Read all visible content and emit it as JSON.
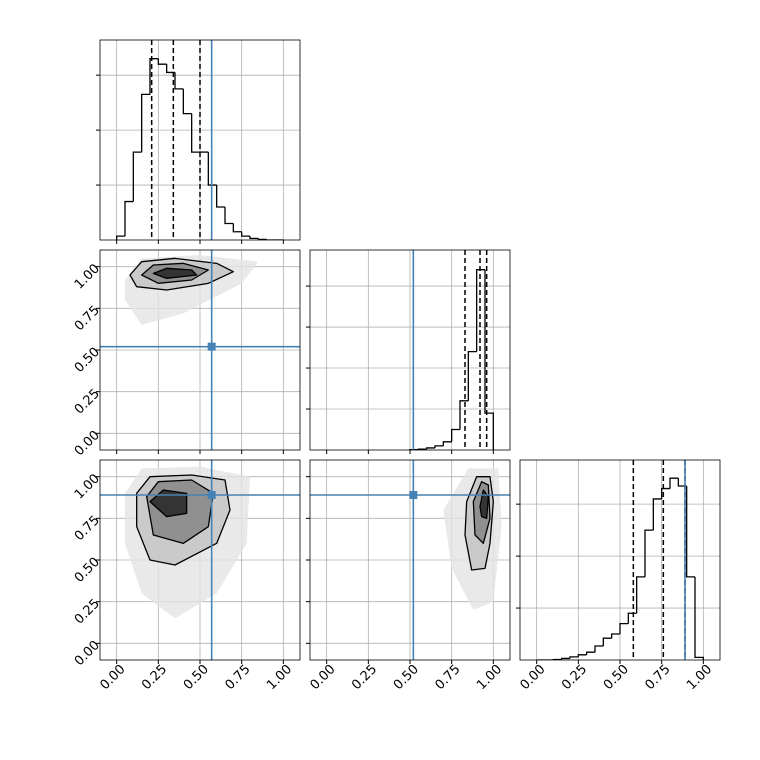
{
  "xlim": [
    -0.1,
    1.1
  ],
  "ticks": [
    {
      "value": 0,
      "label": "0.00"
    },
    {
      "value": 0.25,
      "label": "0.25"
    },
    {
      "value": 0.5,
      "label": "0.50"
    },
    {
      "value": 0.75,
      "label": "0.75"
    },
    {
      "value": 1,
      "label": "1.00"
    }
  ],
  "truth_color": "#4682b4",
  "grid_color": "#b0b0b0",
  "contour_fills": [
    "#e4e4e4",
    "#c6c6c6",
    "#8a8a8a",
    "#2a2a2a"
  ],
  "chart_data": [
    {
      "type": "histogram",
      "bins": [
        0,
        0.05,
        0.1,
        0.15,
        0.2,
        0.25,
        0.3,
        0.35,
        0.4,
        0.45,
        0.5,
        0.55,
        0.6,
        0.65,
        0.7,
        0.75,
        0.8,
        0.85,
        0.9,
        0.95,
        1.0
      ],
      "values": [
        0.07,
        0.7,
        1.6,
        2.65,
        3.3,
        3.2,
        3.05,
        2.75,
        2.3,
        1.6,
        1.6,
        1.0,
        0.6,
        0.3,
        0.15,
        0.07,
        0.03,
        0.01,
        0,
        0
      ],
      "ylim": [
        0,
        3.64
      ],
      "yticks": [
        1,
        2,
        3
      ],
      "quantiles": [
        0.21,
        0.34,
        0.5
      ],
      "truth": 0.57
    },
    {
      "type": "contour2d",
      "contours": [
        {
          "x": [
            0.05,
            0.15,
            0.5,
            0.85,
            0.75,
            0.4,
            0.15,
            0.05
          ],
          "y": [
            0.92,
            1.05,
            1.07,
            1.03,
            0.9,
            0.72,
            0.65,
            0.8
          ]
        },
        {
          "x": [
            0.08,
            0.15,
            0.35,
            0.6,
            0.7,
            0.55,
            0.3,
            0.12
          ],
          "y": [
            0.95,
            1.03,
            1.05,
            1.02,
            0.97,
            0.9,
            0.86,
            0.88
          ]
        },
        {
          "x": [
            0.15,
            0.22,
            0.4,
            0.55,
            0.45,
            0.25
          ],
          "y": [
            0.95,
            1.01,
            1.02,
            0.98,
            0.92,
            0.9
          ]
        },
        {
          "x": [
            0.22,
            0.3,
            0.45,
            0.48,
            0.3
          ],
          "y": [
            0.96,
            0.99,
            0.98,
            0.95,
            0.93
          ]
        }
      ],
      "ylim": [
        -0.1,
        1.1
      ],
      "truth_x": 0.57,
      "truth_y": 0.52
    },
    {
      "type": "histogram",
      "bins": [
        0.5,
        0.55,
        0.6,
        0.65,
        0.7,
        0.75,
        0.8,
        0.85,
        0.9,
        0.95,
        1.0
      ],
      "values": [
        0.01,
        0.02,
        0.05,
        0.1,
        0.2,
        0.5,
        1.2,
        2.4,
        4.4,
        0.9
      ],
      "ylim": [
        0,
        4.88
      ],
      "yticks": [
        1,
        2,
        3,
        4
      ],
      "quantiles": [
        0.83,
        0.92,
        0.96
      ],
      "truth": 0.52
    },
    {
      "type": "contour2d",
      "contours": [
        {
          "x": [
            0.05,
            0.15,
            0.5,
            0.8,
            0.78,
            0.6,
            0.35,
            0.15,
            0.05
          ],
          "y": [
            0.9,
            1.05,
            1.06,
            1.0,
            0.6,
            0.3,
            0.15,
            0.3,
            0.6
          ]
        },
        {
          "x": [
            0.12,
            0.2,
            0.45,
            0.65,
            0.68,
            0.6,
            0.35,
            0.2,
            0.12
          ],
          "y": [
            0.9,
            1.0,
            1.01,
            0.98,
            0.8,
            0.6,
            0.47,
            0.5,
            0.7
          ]
        },
        {
          "x": [
            0.18,
            0.25,
            0.45,
            0.58,
            0.55,
            0.4,
            0.22
          ],
          "y": [
            0.88,
            0.97,
            0.98,
            0.9,
            0.7,
            0.6,
            0.65
          ]
        },
        {
          "x": [
            0.2,
            0.28,
            0.42,
            0.42,
            0.3
          ],
          "y": [
            0.85,
            0.92,
            0.9,
            0.78,
            0.76
          ]
        }
      ],
      "ylim": [
        -0.1,
        1.1
      ],
      "truth_x": 0.57,
      "truth_y": 0.89
    },
    {
      "type": "contour2d",
      "contours": [
        {
          "x": [
            0.7,
            0.85,
            1.03,
            1.05,
            1.0,
            0.88,
            0.75
          ],
          "y": [
            0.8,
            1.05,
            1.05,
            0.7,
            0.25,
            0.2,
            0.45
          ]
        },
        {
          "x": [
            0.84,
            0.9,
            0.98,
            1.0,
            0.98,
            0.95,
            0.87,
            0.83
          ],
          "y": [
            0.85,
            1.0,
            1.0,
            0.85,
            0.6,
            0.45,
            0.44,
            0.65
          ]
        },
        {
          "x": [
            0.88,
            0.93,
            0.97,
            0.98,
            0.94,
            0.89
          ],
          "y": [
            0.85,
            0.97,
            0.95,
            0.75,
            0.6,
            0.65
          ]
        },
        {
          "x": [
            0.92,
            0.94,
            0.97,
            0.96,
            0.93
          ],
          "y": [
            0.82,
            0.92,
            0.88,
            0.75,
            0.76
          ]
        }
      ],
      "ylim": [
        -0.1,
        1.1
      ],
      "truth_x": 0.52,
      "truth_y": 0.89
    },
    {
      "type": "histogram",
      "bins": [
        0,
        0.05,
        0.1,
        0.15,
        0.2,
        0.25,
        0.3,
        0.35,
        0.4,
        0.45,
        0.5,
        0.55,
        0.6,
        0.65,
        0.7,
        0.75,
        0.8,
        0.85,
        0.9,
        0.95,
        1.0
      ],
      "values": [
        0,
        0,
        0.01,
        0.03,
        0.06,
        0.1,
        0.15,
        0.27,
        0.42,
        0.5,
        0.7,
        0.9,
        1.6,
        2.5,
        3.1,
        3.3,
        3.5,
        3.35,
        1.6,
        0.05
      ],
      "ylim": [
        0,
        3.85
      ],
      "yticks": [
        1,
        2,
        3
      ],
      "quantiles": [
        0.58,
        0.76,
        0.89
      ],
      "truth": 0.89
    }
  ]
}
